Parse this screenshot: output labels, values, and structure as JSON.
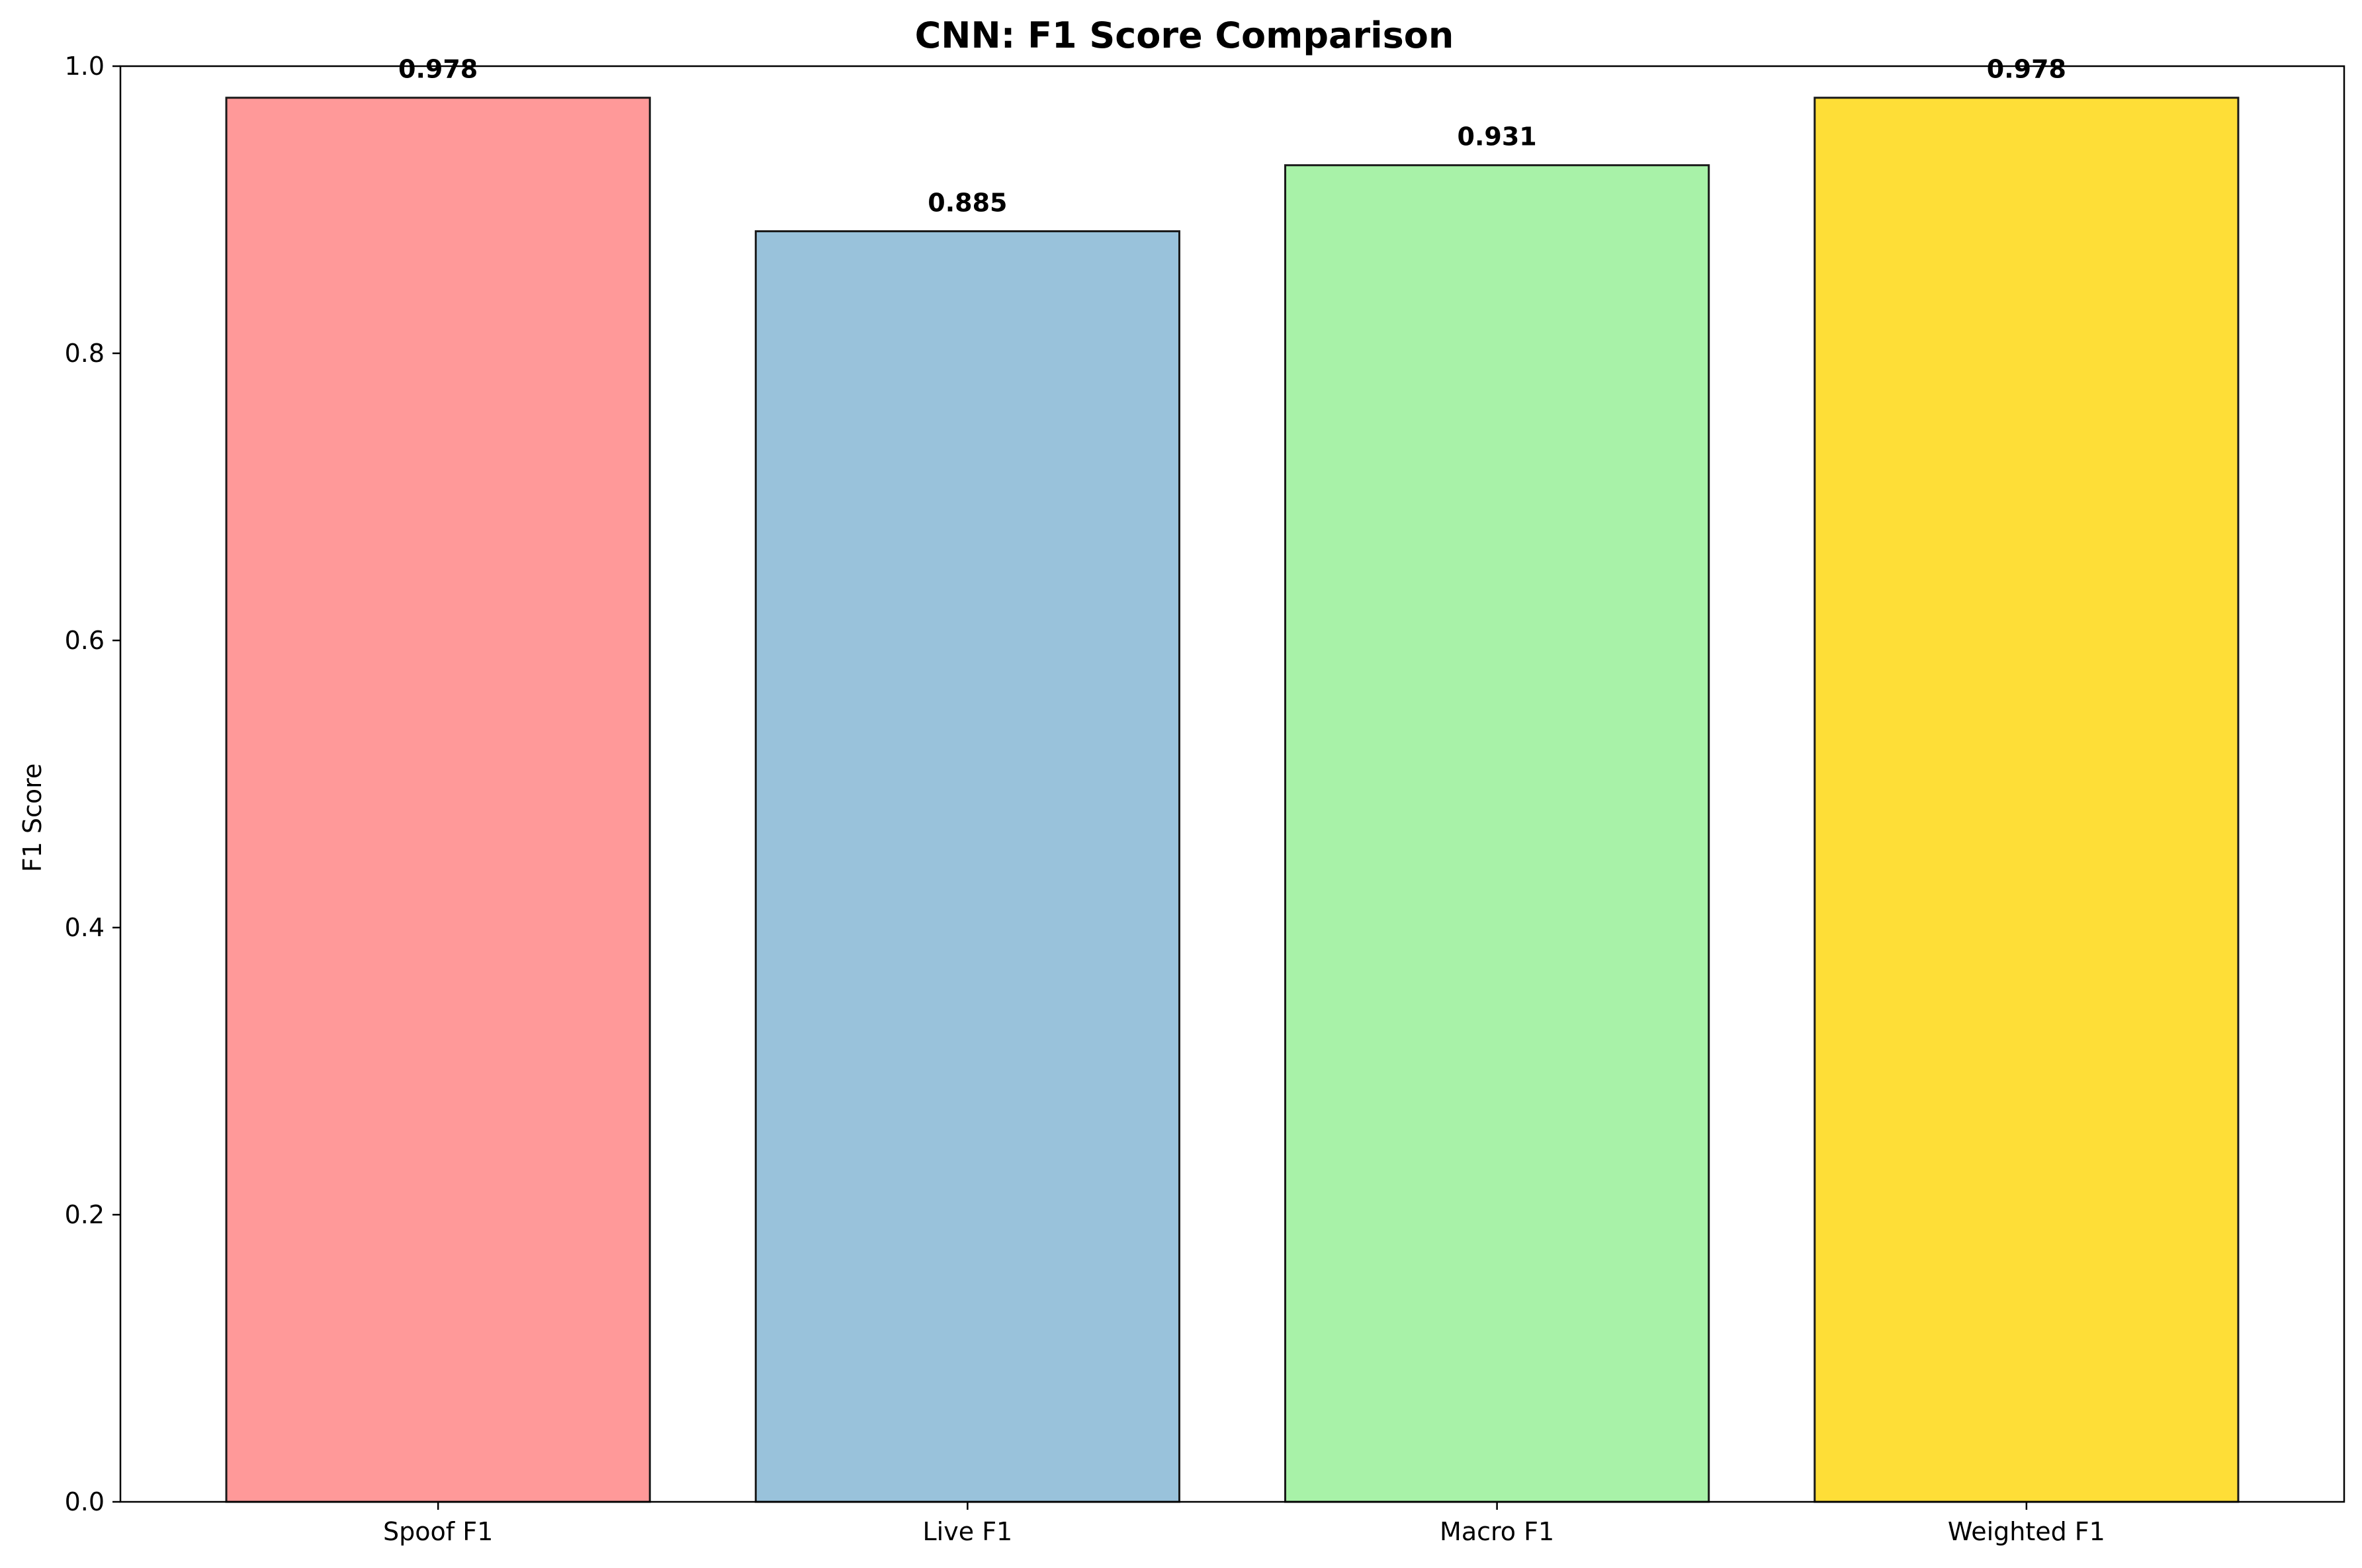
{
  "chart_data": {
    "type": "bar",
    "title": "CNN: F1 Score Comparison",
    "xlabel": "",
    "ylabel": "F1 Score",
    "ylim": [
      0,
      1.0
    ],
    "yticks": [
      0.0,
      0.2,
      0.4,
      0.6,
      0.8,
      1.0
    ],
    "ytick_labels": [
      "0.0",
      "0.2",
      "0.4",
      "0.6",
      "0.8",
      "1.0"
    ],
    "categories": [
      "Spoof F1",
      "Live F1",
      "Macro F1",
      "Weighted F1"
    ],
    "values": [
      0.978,
      0.885,
      0.931,
      0.978
    ],
    "value_labels": [
      "0.978",
      "0.885",
      "0.931",
      "0.978"
    ],
    "bar_colors": [
      "#ff9999",
      "#99c2db",
      "#a8f2a8",
      "#fede37"
    ],
    "bar_edge_color": "#1a1a1a",
    "grid": false,
    "legend": false
  }
}
